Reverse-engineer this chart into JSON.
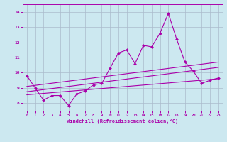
{
  "xlabel": "Windchill (Refroidissement éolien,°C)",
  "background_color": "#cce8f0",
  "line_color": "#aa00aa",
  "grid_color": "#aabbcc",
  "xlim": [
    -0.5,
    23.5
  ],
  "ylim": [
    7.5,
    14.5
  ],
  "yticks": [
    8,
    9,
    10,
    11,
    12,
    13,
    14
  ],
  "xticks": [
    0,
    1,
    2,
    3,
    4,
    5,
    6,
    7,
    8,
    9,
    10,
    11,
    12,
    13,
    14,
    15,
    16,
    17,
    18,
    19,
    20,
    21,
    22,
    23
  ],
  "series1_x": [
    0,
    1,
    2,
    3,
    4,
    5,
    6,
    7,
    8,
    9,
    10,
    11,
    12,
    13,
    14,
    15,
    16,
    17,
    18,
    19,
    20,
    21,
    22,
    23
  ],
  "series1_y": [
    9.8,
    9.0,
    8.2,
    8.5,
    8.5,
    7.85,
    8.6,
    8.8,
    9.2,
    9.3,
    10.3,
    11.3,
    11.5,
    10.6,
    11.8,
    11.7,
    12.6,
    13.9,
    12.2,
    10.7,
    10.1,
    9.3,
    9.5,
    9.65
  ],
  "series2_x": [
    0,
    23
  ],
  "series2_y": [
    9.1,
    10.7
  ],
  "series3_x": [
    0,
    23
  ],
  "series3_y": [
    8.75,
    10.35
  ],
  "series4_x": [
    0,
    23
  ],
  "series4_y": [
    8.55,
    9.6
  ]
}
